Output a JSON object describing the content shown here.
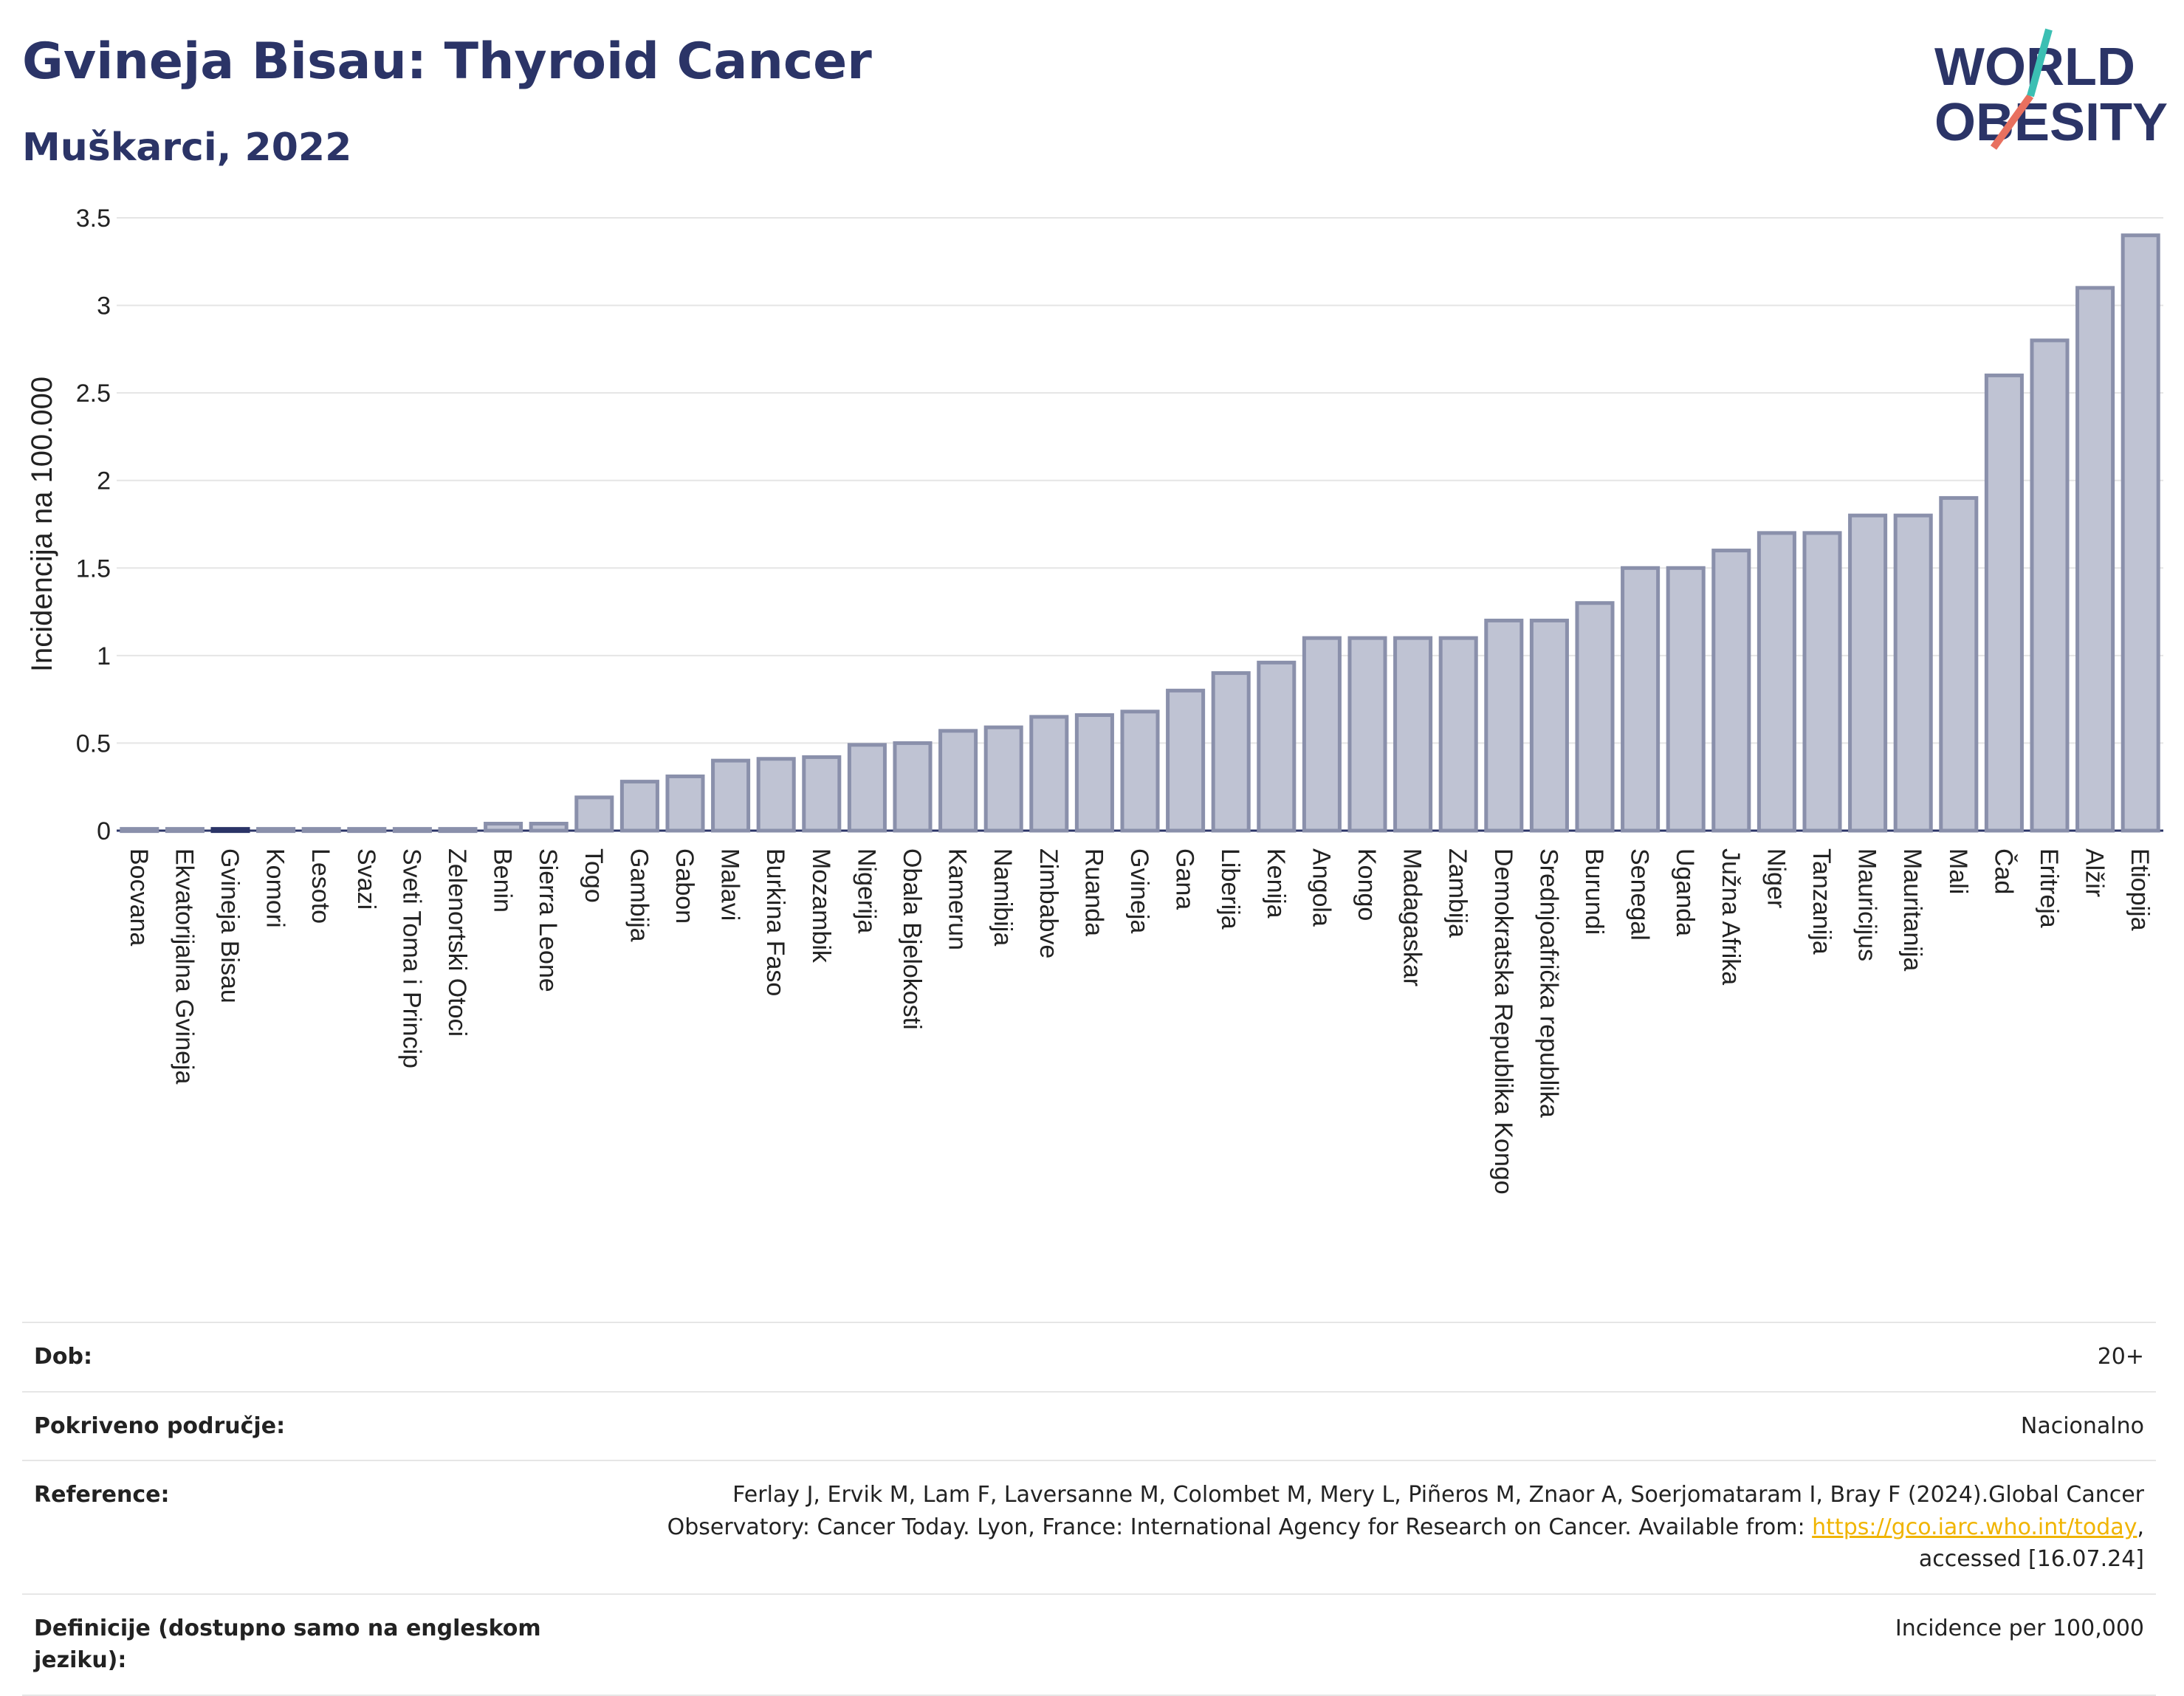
{
  "header": {
    "title": "Gvineja Bisau: Thyroid Cancer",
    "subtitle": "Muškarci, 2022"
  },
  "logo": {
    "line1": "WORLD",
    "line2": "OBESITY"
  },
  "colors": {
    "bar": "#bfc3d3",
    "bar_stroke": "#8a90ab",
    "highlight": "#2b3467",
    "text": "#2b3467"
  },
  "chart_data": {
    "type": "bar",
    "ylabel": "Incidencija na 100.000",
    "xlabel": "",
    "ylim": [
      0,
      3.5
    ],
    "yticks": [
      0,
      0.5,
      1,
      1.5,
      2,
      2.5,
      3,
      3.5
    ],
    "ytick_labels": [
      "0",
      "0.5",
      "1",
      "1.5",
      "2",
      "2.5",
      "3",
      "3.5"
    ],
    "grid": true,
    "highlight": "Gvineja Bisau",
    "categories": [
      "Bocvana",
      "Ekvatorijalna Gvineja",
      "Gvineja Bisau",
      "Komori",
      "Lesoto",
      "Svazi",
      "Sveti Toma i Princip",
      "Zelenortski Otoci",
      "Benin",
      "Sierra Leone",
      "Togo",
      "Gambija",
      "Gabon",
      "Malavi",
      "Burkina Faso",
      "Mozambik",
      "Nigerija",
      "Obala Bjelokosti",
      "Kamerun",
      "Namibija",
      "Zimbabve",
      "Ruanda",
      "Gvineja",
      "Gana",
      "Liberija",
      "Kenija",
      "Angola",
      "Kongo",
      "Madagaskar",
      "Zambija",
      "Demokratska Republika Kongo",
      "Srednjoafrička republika",
      "Burundi",
      "Senegal",
      "Uganda",
      "Južna Afrika",
      "Niger",
      "Tanzanija",
      "Mauricijus",
      "Mauritanija",
      "Mali",
      "Čad",
      "Eritreja",
      "Alžir",
      "Etiopija"
    ],
    "values": [
      0.01,
      0.01,
      0.01,
      0.01,
      0.01,
      0.01,
      0.01,
      0.01,
      0.04,
      0.04,
      0.19,
      0.28,
      0.31,
      0.4,
      0.41,
      0.42,
      0.49,
      0.5,
      0.57,
      0.59,
      0.65,
      0.66,
      0.68,
      0.8,
      0.9,
      0.96,
      1.1,
      1.1,
      1.1,
      1.1,
      1.2,
      1.2,
      1.3,
      1.5,
      1.5,
      1.6,
      1.7,
      1.7,
      1.8,
      1.8,
      1.9,
      2.6,
      2.8,
      3.1,
      3.4
    ]
  },
  "info": {
    "age_label": "Dob:",
    "age_value": "20+",
    "coverage_label": "Pokriveno područje:",
    "coverage_value": "Nacionalno",
    "reference_label": "Reference:",
    "reference_text": "Ferlay J, Ervik M, Lam F, Laversanne M, Colombet M, Mery L, Piñeros M, Znaor A, Soerjomataram I, Bray F (2024).Global Cancer Observatory: Cancer Today. Lyon, France: International Agency for Research on Cancer. Available from:",
    "reference_link": "https://gco.iarc.who.int/today",
    "reference_suffix": ", accessed [16.07.24]",
    "definitions_label": "Definicije (dostupno samo na engleskom jeziku):",
    "definitions_value": "Incidence per 100,000"
  }
}
